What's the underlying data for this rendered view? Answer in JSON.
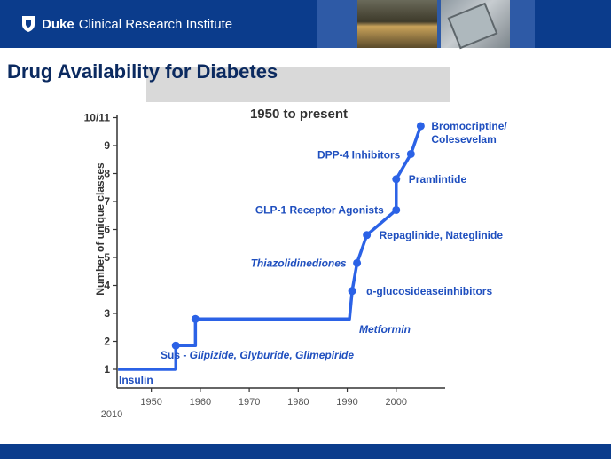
{
  "header": {
    "logo_strong": "Duke",
    "logo_rest": "Clinical Research Institute",
    "accent_color": "#0b3c8c"
  },
  "slide": {
    "title": "Drug Availability for Diabetes"
  },
  "chart_data": {
    "type": "line",
    "title": "1950 to present",
    "ylabel": "Number of unique classes",
    "xlabel": "",
    "line_color": "#2b62e6",
    "ylim": [
      1,
      10
    ],
    "xlim": [
      1943,
      2010
    ],
    "y_ticks": [
      "1",
      "2",
      "3",
      "4",
      "5",
      "6",
      "7",
      "8",
      "9",
      "10/11"
    ],
    "x_ticks": [
      "1950",
      "1960",
      "1970",
      "1980",
      "1990",
      "2000"
    ],
    "x_corner_label": "2010",
    "points": [
      {
        "x": 1955,
        "y": 1.85,
        "label": "",
        "italic": false
      },
      {
        "x": 1959,
        "y": 2.8,
        "label": "",
        "italic": false
      },
      {
        "x": 1991,
        "y": 3.8,
        "label": "α-glucosideaseinhibitors",
        "italic": false
      },
      {
        "x": 1992,
        "y": 4.8,
        "label": "Thiazolidinediones",
        "italic": true
      },
      {
        "x": 1994,
        "y": 5.8,
        "label": "Repaglinide, Nateglinide",
        "italic": false
      },
      {
        "x": 2000,
        "y": 6.7,
        "label": "GLP-1 Receptor Agonists",
        "italic": false
      },
      {
        "x": 2000,
        "y": 7.8,
        "label": "Pramlintide",
        "italic": false
      },
      {
        "x": 2003,
        "y": 8.7,
        "label": "DPP-4 Inhibitors",
        "italic": false
      },
      {
        "x": 2005,
        "y": 9.7,
        "label": "Bromocriptine/ Colesevelam",
        "italic": false
      }
    ],
    "annotations": {
      "insulin": "Insulin",
      "sus_prefix": "Sus - ",
      "sus_drugs": "Glipizide, Glyburide, Glimepiride",
      "metformin": "Metformin"
    }
  }
}
